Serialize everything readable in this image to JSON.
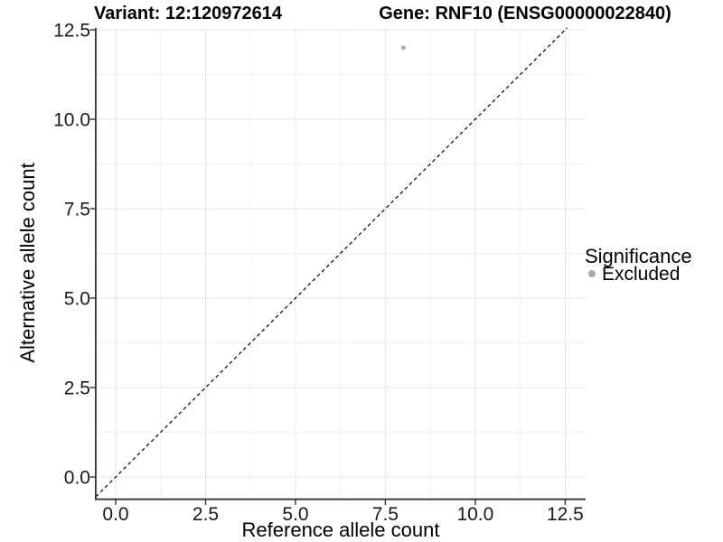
{
  "chart_data": {
    "type": "scatter",
    "title_left": "Variant: 12:120972614",
    "title_right": "Gene: RNF10 (ENSG00000022840)",
    "xlabel": "Reference allele count",
    "ylabel": "Alternative allele count",
    "x_tick_labels": [
      "0.0",
      "2.5",
      "5.0",
      "7.5",
      "10.0",
      "12.5"
    ],
    "y_tick_labels": [
      "0.0",
      "2.5",
      "5.0",
      "7.5",
      "10.0",
      "12.5"
    ],
    "x_ticks": [
      0.0,
      2.5,
      5.0,
      7.5,
      10.0,
      12.5
    ],
    "y_ticks": [
      0.0,
      2.5,
      5.0,
      7.5,
      10.0,
      12.5
    ],
    "xlim": [
      -0.553,
      13.07
    ],
    "ylim": [
      -0.606,
      12.55
    ],
    "grid": "on",
    "grid_interval": 1.25,
    "identity_line": {
      "slope": 1,
      "intercept": 0,
      "style": "dashed",
      "color": "#111111"
    },
    "series": [
      {
        "name": "Excluded",
        "color": "#b0b0b0",
        "points": [
          {
            "x": 8,
            "y": 12
          }
        ]
      }
    ],
    "legend": {
      "title": "Significance",
      "position": "right",
      "items": [
        {
          "label": "Excluded",
          "color": "#aaaaaa"
        }
      ]
    },
    "colors": {
      "background": "#ffffff",
      "grid_major": "#e4e4e4",
      "grid_minor": "#efefef",
      "axis": "#333333",
      "text": "#000000"
    }
  }
}
